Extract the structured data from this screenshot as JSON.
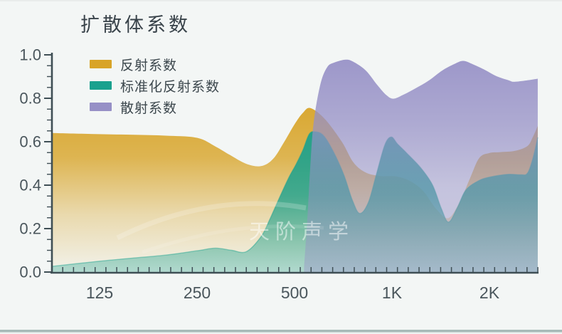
{
  "title": "扩散体系数",
  "watermark": "天阶声学",
  "colors": {
    "background": "#f3f6f5",
    "axis": "#3f4f55",
    "tick_label": "#4a565c",
    "title_text": "#39434a",
    "legend_text": "#3c474d",
    "bottom_bar": "#a7bab8",
    "watermark_text": "#ffffff"
  },
  "legend": [
    {
      "label": "反射系数",
      "color": "#d8a428"
    },
    {
      "label": "标准化反射系数",
      "color": "#1aa18e"
    },
    {
      "label": "散射系数",
      "color": "#9690c6"
    }
  ],
  "chart_data": {
    "type": "area",
    "title": "扩散体系数",
    "x_axis": "frequency_hz",
    "x_scale": "log2",
    "x_range_hz": [
      89,
      2820
    ],
    "ylim": [
      0,
      1
    ],
    "grid": false,
    "legend_position": "top-left",
    "y_ticks": [
      "0.0",
      "0.2",
      "0.4",
      "0.6",
      "0.8",
      "1.0"
    ],
    "x_ticks": [
      {
        "label": "125",
        "freq": 125
      },
      {
        "label": "250",
        "freq": 250
      },
      {
        "label": "500",
        "freq": 500
      },
      {
        "label": "1K",
        "freq": 1000
      },
      {
        "label": "2K",
        "freq": 2000
      }
    ],
    "series": [
      {
        "name": "反射系数",
        "color": "#d8a428",
        "points": [
          [
            89,
            0.64
          ],
          [
            100,
            0.638
          ],
          [
            125,
            0.635
          ],
          [
            160,
            0.632
          ],
          [
            200,
            0.628
          ],
          [
            250,
            0.618
          ],
          [
            285,
            0.578
          ],
          [
            315,
            0.54
          ],
          [
            355,
            0.498
          ],
          [
            395,
            0.488
          ],
          [
            430,
            0.522
          ],
          [
            465,
            0.6
          ],
          [
            500,
            0.68
          ],
          [
            530,
            0.732
          ],
          [
            560,
            0.755
          ],
          [
            620,
            0.705
          ],
          [
            700,
            0.6
          ],
          [
            760,
            0.505
          ],
          [
            830,
            0.458
          ],
          [
            920,
            0.442
          ],
          [
            1030,
            0.44
          ],
          [
            1140,
            0.418
          ],
          [
            1250,
            0.372
          ],
          [
            1370,
            0.29
          ],
          [
            1490,
            0.248
          ],
          [
            1610,
            0.315
          ],
          [
            1740,
            0.43
          ],
          [
            1860,
            0.525
          ],
          [
            2000,
            0.548
          ],
          [
            2160,
            0.552
          ],
          [
            2400,
            0.558
          ],
          [
            2620,
            0.58
          ],
          [
            2720,
            0.62
          ],
          [
            2820,
            0.672
          ]
        ]
      },
      {
        "name": "标准化反射系数",
        "color": "#1aa18e",
        "points": [
          [
            89,
            0.026
          ],
          [
            125,
            0.05
          ],
          [
            160,
            0.065
          ],
          [
            200,
            0.078
          ],
          [
            250,
            0.098
          ],
          [
            285,
            0.11
          ],
          [
            320,
            0.1
          ],
          [
            355,
            0.094
          ],
          [
            395,
            0.165
          ],
          [
            420,
            0.245
          ],
          [
            450,
            0.345
          ],
          [
            480,
            0.435
          ],
          [
            505,
            0.495
          ],
          [
            530,
            0.56
          ],
          [
            555,
            0.635
          ],
          [
            580,
            0.646
          ],
          [
            615,
            0.628
          ],
          [
            660,
            0.553
          ],
          [
            710,
            0.448
          ],
          [
            755,
            0.33
          ],
          [
            795,
            0.27
          ],
          [
            845,
            0.32
          ],
          [
            895,
            0.45
          ],
          [
            950,
            0.585
          ],
          [
            995,
            0.622
          ],
          [
            1040,
            0.59
          ],
          [
            1110,
            0.548
          ],
          [
            1230,
            0.478
          ],
          [
            1335,
            0.4
          ],
          [
            1420,
            0.293
          ],
          [
            1495,
            0.23
          ],
          [
            1590,
            0.295
          ],
          [
            1690,
            0.377
          ],
          [
            1850,
            0.42
          ],
          [
            2000,
            0.437
          ],
          [
            2280,
            0.45
          ],
          [
            2500,
            0.448
          ],
          [
            2620,
            0.455
          ],
          [
            2720,
            0.52
          ],
          [
            2820,
            0.62
          ]
        ]
      },
      {
        "name": "散射系数",
        "color": "#9690c6",
        "points": [
          [
            535,
            0.02
          ],
          [
            548,
            0.25
          ],
          [
            558,
            0.46
          ],
          [
            572,
            0.68
          ],
          [
            600,
            0.86
          ],
          [
            630,
            0.942
          ],
          [
            665,
            0.965
          ],
          [
            720,
            0.978
          ],
          [
            760,
            0.968
          ],
          [
            830,
            0.928
          ],
          [
            900,
            0.862
          ],
          [
            960,
            0.815
          ],
          [
            1010,
            0.798
          ],
          [
            1080,
            0.815
          ],
          [
            1180,
            0.845
          ],
          [
            1300,
            0.882
          ],
          [
            1430,
            0.928
          ],
          [
            1560,
            0.958
          ],
          [
            1660,
            0.972
          ],
          [
            1780,
            0.956
          ],
          [
            1940,
            0.93
          ],
          [
            2100,
            0.902
          ],
          [
            2300,
            0.882
          ],
          [
            2380,
            0.876
          ],
          [
            2600,
            0.882
          ],
          [
            2820,
            0.89
          ]
        ]
      }
    ]
  }
}
